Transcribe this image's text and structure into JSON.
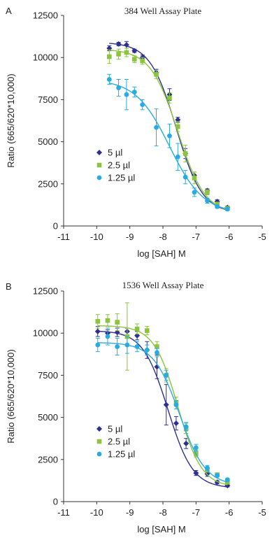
{
  "chart_data": [
    {
      "type": "scatter",
      "panel_label": "A",
      "title": "384 Well Assay Plate",
      "xlabel": "log [SAH] M",
      "ylabel": "Ratio (665/620*10,000)",
      "xlim": [
        -11,
        -5
      ],
      "ylim": [
        0,
        12500
      ],
      "x_ticks": [
        -11,
        -10,
        -9,
        -8,
        -7,
        -6,
        -5
      ],
      "y_ticks": [
        0,
        2500,
        5000,
        7500,
        10000,
        12500
      ],
      "x_tick_labels": [
        "-11",
        "-10",
        "-9",
        "-8",
        "-7",
        "-6",
        "-5"
      ],
      "y_tick_labels": [
        "0",
        "2500",
        "5000",
        "7500",
        "10000",
        "12500"
      ],
      "grid": false,
      "legend_position": "bottom-left",
      "series": [
        {
          "name": "5 µl",
          "color": "#2e2f8f",
          "marker": "diamond",
          "x": [
            -9.62,
            -9.34,
            -9.1,
            -8.86,
            -8.62,
            -8.2,
            -7.8,
            -7.55,
            -7.32,
            -7.05,
            -6.66,
            -6.36,
            -6.05
          ],
          "y": [
            10550,
            10800,
            10750,
            10400,
            10000,
            9100,
            7800,
            6300,
            4300,
            3000,
            2100,
            1450,
            1100
          ],
          "err": [
            150,
            100,
            200,
            100,
            150,
            200,
            350,
            150,
            300,
            200,
            100,
            100,
            80
          ],
          "fit": {
            "top": 10900,
            "bottom": 750,
            "logec50": -7.6,
            "hill": 1.1
          }
        },
        {
          "name": "2.5 µl",
          "color": "#8cc43f",
          "marker": "square",
          "x": [
            -9.62,
            -9.34,
            -9.1,
            -8.86,
            -8.62,
            -8.2,
            -7.8,
            -7.55,
            -7.32,
            -7.05,
            -6.66,
            -6.36,
            -6.05
          ],
          "y": [
            10050,
            10200,
            10300,
            9900,
            9800,
            9000,
            7600,
            5900,
            4300,
            2850,
            2000,
            1300,
            1050
          ],
          "err": [
            400,
            300,
            250,
            200,
            200,
            250,
            300,
            300,
            500,
            350,
            150,
            100,
            80
          ],
          "fit": {
            "top": 10500,
            "bottom": 700,
            "logec50": -7.55,
            "hill": 1.05
          }
        },
        {
          "name": "1.25 µl",
          "color": "#29abe2",
          "marker": "circle",
          "x": [
            -9.62,
            -9.34,
            -9.1,
            -8.86,
            -8.62,
            -8.2,
            -7.8,
            -7.55,
            -7.32,
            -7.05,
            -6.66,
            -6.36,
            -6.05
          ],
          "y": [
            8700,
            8200,
            7800,
            7950,
            7200,
            5850,
            5350,
            4100,
            2900,
            2000,
            1500,
            1150,
            1000
          ],
          "err": [
            300,
            500,
            900,
            300,
            300,
            1100,
            700,
            800,
            400,
            250,
            150,
            100,
            80
          ],
          "fit": {
            "top": 8700,
            "bottom": 750,
            "logec50": -7.8,
            "hill": 0.85
          }
        }
      ]
    },
    {
      "type": "scatter",
      "panel_label": "B",
      "title": "1536 Well Assay Plate",
      "xlabel": "log [SAH] M",
      "ylabel": "Ratio (665/620*10,000)",
      "xlim": [
        -11,
        -5
      ],
      "ylim": [
        0,
        12500
      ],
      "x_ticks": [
        -11,
        -10,
        -9,
        -8,
        -7,
        -6,
        -5
      ],
      "y_ticks": [
        0,
        2500,
        5000,
        7500,
        10000,
        12500
      ],
      "x_tick_labels": [
        "-11",
        "-10",
        "-9",
        "-8",
        "-7",
        "-6",
        "-5"
      ],
      "y_tick_labels": [
        "0",
        "2500",
        "5000",
        "7500",
        "10000",
        "12500"
      ],
      "grid": false,
      "legend_position": "bottom-left",
      "series": [
        {
          "name": "5 µl",
          "color": "#2e2f8f",
          "marker": "diamond",
          "x": [
            -9.97,
            -9.67,
            -9.38,
            -9.08,
            -8.78,
            -8.48,
            -8.18,
            -7.9,
            -7.6,
            -7.3,
            -7.0,
            -6.66,
            -6.36,
            -6.05
          ],
          "y": [
            10100,
            10000,
            10050,
            10100,
            9850,
            9000,
            8000,
            5750,
            4650,
            3450,
            1700,
            1650,
            1150,
            950
          ],
          "err": [
            300,
            200,
            250,
            200,
            250,
            500,
            700,
            1200,
            400,
            300,
            150,
            150,
            100,
            80
          ],
          "fit": {
            "top": 10150,
            "bottom": 800,
            "logec50": -7.85,
            "hill": 1.15
          }
        },
        {
          "name": "2.5 µl",
          "color": "#8cc43f",
          "marker": "square",
          "x": [
            -9.97,
            -9.67,
            -9.38,
            -9.08,
            -8.78,
            -8.48,
            -8.18,
            -7.9,
            -7.6,
            -7.3,
            -7.0,
            -6.66,
            -6.36,
            -6.05
          ],
          "y": [
            10700,
            10750,
            10650,
            9800,
            10250,
            10150,
            9200,
            7500,
            5850,
            4350,
            2850,
            1900,
            1600,
            1150
          ],
          "err": [
            400,
            350,
            500,
            2000,
            300,
            250,
            300,
            400,
            350,
            300,
            200,
            150,
            100,
            80
          ],
          "fit": {
            "top": 10450,
            "bottom": 850,
            "logec50": -7.55,
            "hill": 1.2
          }
        },
        {
          "name": "1.25 µl",
          "color": "#29abe2",
          "marker": "circle",
          "x": [
            -9.97,
            -9.67,
            -9.38,
            -9.08,
            -8.78,
            -8.48,
            -8.18,
            -7.9,
            -7.6,
            -7.3,
            -7.0,
            -6.66,
            -6.36,
            -6.05
          ],
          "y": [
            9300,
            9800,
            9200,
            9300,
            9200,
            9000,
            8850,
            7500,
            5750,
            4450,
            3200,
            2000,
            1550,
            1300
          ],
          "err": [
            400,
            500,
            500,
            500,
            300,
            300,
            250,
            300,
            250,
            250,
            200,
            150,
            100,
            80
          ],
          "fit": {
            "top": 9450,
            "bottom": 950,
            "logec50": -7.5,
            "hill": 1.1
          }
        }
      ]
    }
  ]
}
